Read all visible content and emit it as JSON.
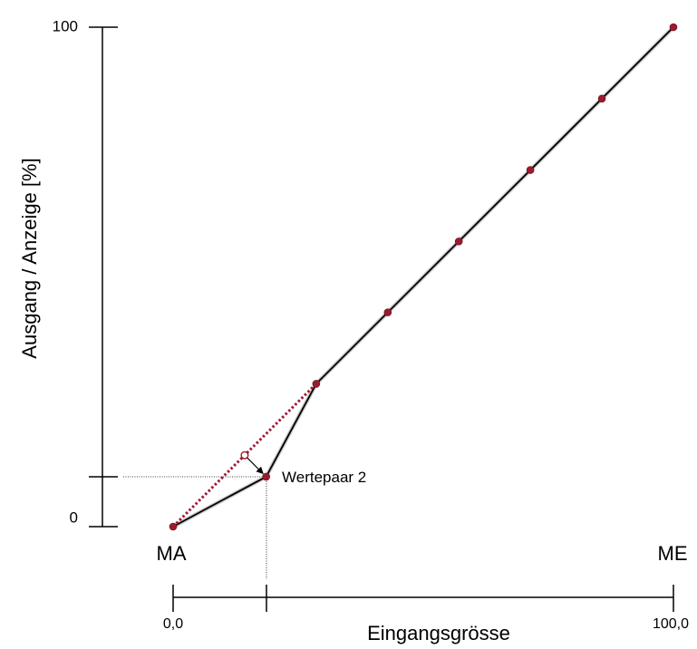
{
  "chart_data": {
    "type": "line",
    "ylabel": "Ausgang / Anzeige [%]",
    "xlabel": "Eingangsgrösse",
    "y_ticks": [
      "100",
      "0"
    ],
    "x_ticks": [
      "0,0",
      "100,0"
    ],
    "x_start_label": "MA",
    "x_end_label": "ME",
    "annotation": "Wertepaar 2",
    "xlim": [
      0,
      100
    ],
    "ylim": [
      0,
      100
    ],
    "series": [
      {
        "style": "solid",
        "color": "#000000",
        "x": [
          0,
          18.6,
          28.6,
          42.9,
          57.1,
          71.4,
          85.7,
          100
        ],
        "y": [
          0,
          10,
          28.6,
          42.9,
          57.1,
          71.4,
          85.7,
          100
        ]
      },
      {
        "style": "dotted",
        "color": "#9b1b2e",
        "x": [
          0,
          28.6
        ],
        "y": [
          0,
          28.6
        ]
      }
    ],
    "original_point_2": {
      "x": 14.3,
      "y": 14.3
    },
    "adjusted_point_2": {
      "x": 18.6,
      "y": 10
    },
    "marker_color": "#9b1b2e",
    "grid": false
  }
}
